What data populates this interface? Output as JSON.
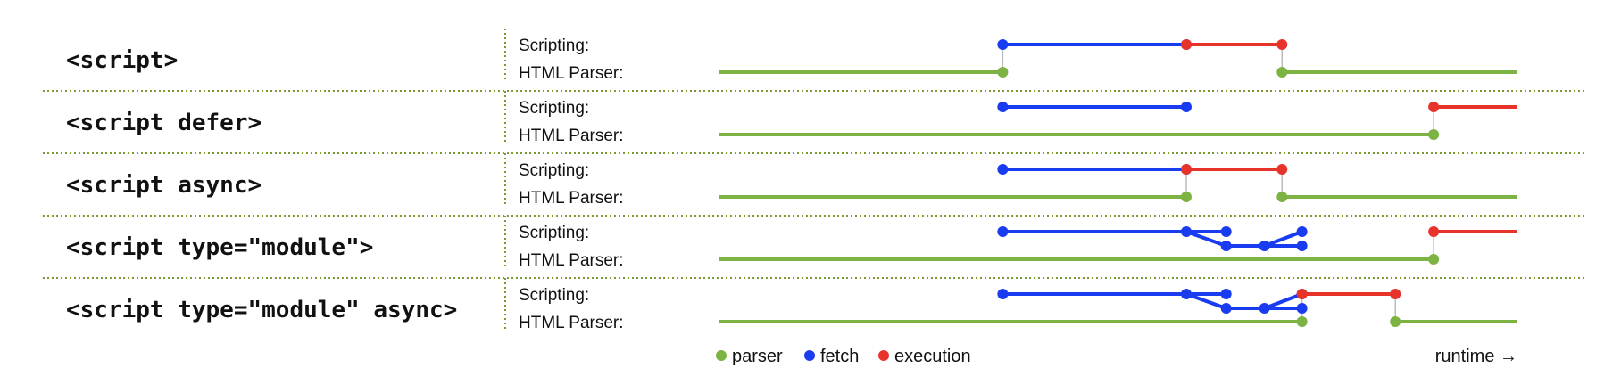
{
  "colors": {
    "parser": "#7cb342",
    "fetch": "#1a3cf0",
    "execution": "#e8332a",
    "connector": "#bbbbbb",
    "separator": "#7a9a2e"
  },
  "axis": {
    "runtime_min": 0,
    "runtime_max": 100
  },
  "lane_labels": {
    "scripting": "Scripting:",
    "parser": "HTML Parser:"
  },
  "rows": [
    {
      "label": "<script>",
      "parser": [
        [
          0,
          35.5
        ],
        [
          70.5,
          100
        ]
      ],
      "fetch": [
        [
          [
            35.5,
            "s"
          ],
          [
            58.5,
            "s"
          ]
        ]
      ],
      "execution": [
        [
          58.5,
          70.5
        ]
      ],
      "connectors": [
        35.5,
        70.5
      ]
    },
    {
      "label": "<script defer>",
      "parser": [
        [
          0,
          89.5
        ]
      ],
      "fetch": [
        [
          [
            35.5,
            "s"
          ],
          [
            58.5,
            "s"
          ]
        ]
      ],
      "execution": [
        [
          89.5,
          100
        ]
      ],
      "connectors": [
        89.5
      ]
    },
    {
      "label": "<script async>",
      "parser": [
        [
          0,
          58.5
        ],
        [
          70.5,
          100
        ]
      ],
      "fetch": [
        [
          [
            35.5,
            "s"
          ],
          [
            58.5,
            "s"
          ]
        ]
      ],
      "execution": [
        [
          58.5,
          70.5
        ]
      ],
      "connectors": [
        58.5,
        70.5
      ]
    },
    {
      "label": "<script type=\"module\">",
      "parser": [
        [
          0,
          89.5
        ]
      ],
      "fetch": [
        [
          [
            35.5,
            "s"
          ],
          [
            58.5,
            "s"
          ],
          [
            63.5,
            "s"
          ]
        ],
        [
          [
            58.5,
            "s"
          ],
          [
            63.5,
            "m"
          ],
          [
            68.3,
            "m"
          ],
          [
            73,
            "s"
          ]
        ],
        [
          [
            68.3,
            "m"
          ],
          [
            73,
            "m"
          ]
        ]
      ],
      "execution": [
        [
          89.5,
          100
        ]
      ],
      "connectors": [
        89.5
      ]
    },
    {
      "label": "<script type=\"module\" async>",
      "parser": [
        [
          0,
          73
        ],
        [
          84.7,
          100
        ]
      ],
      "fetch": [
        [
          [
            35.5,
            "s"
          ],
          [
            58.5,
            "s"
          ],
          [
            63.5,
            "s"
          ]
        ],
        [
          [
            58.5,
            "s"
          ],
          [
            63.5,
            "m"
          ],
          [
            68.3,
            "m"
          ],
          [
            73,
            "s"
          ]
        ],
        [
          [
            68.3,
            "m"
          ],
          [
            73,
            "m"
          ]
        ]
      ],
      "execution": [
        [
          73,
          84.7
        ]
      ],
      "connectors": [
        73,
        84.7
      ]
    }
  ],
  "legend": {
    "parser": "parser",
    "fetch": "fetch",
    "execution": "execution",
    "runtime": "runtime →"
  }
}
